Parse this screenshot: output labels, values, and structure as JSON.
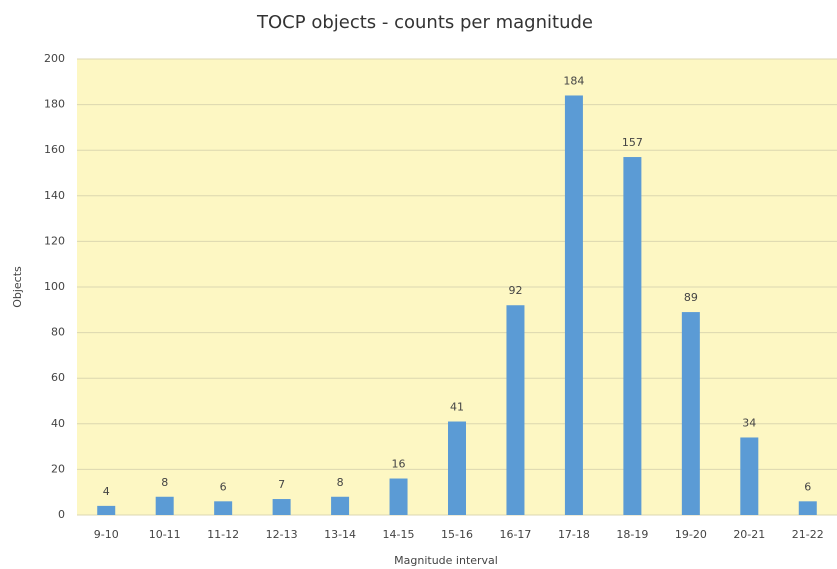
{
  "chart_data": {
    "type": "bar",
    "title": "TOCP objects - counts per magnitude",
    "x_label": "Magnitude interval",
    "y_label": "Objects",
    "categories": [
      "9-10",
      "10-11",
      "11-12",
      "12-13",
      "13-14",
      "14-15",
      "15-16",
      "16-17",
      "17-18",
      "18-19",
      "19-20",
      "20-21",
      "21-22"
    ],
    "values": [
      4,
      8,
      6,
      7,
      8,
      16,
      41,
      92,
      184,
      157,
      89,
      34,
      6
    ],
    "color": "#5b9bd5",
    "plot_background": "#fdf7c3",
    "ylim": [
      0,
      200
    ],
    "yticks": [
      0,
      20,
      40,
      60,
      80,
      100,
      120,
      140,
      160,
      180,
      200
    ],
    "grid": true
  }
}
